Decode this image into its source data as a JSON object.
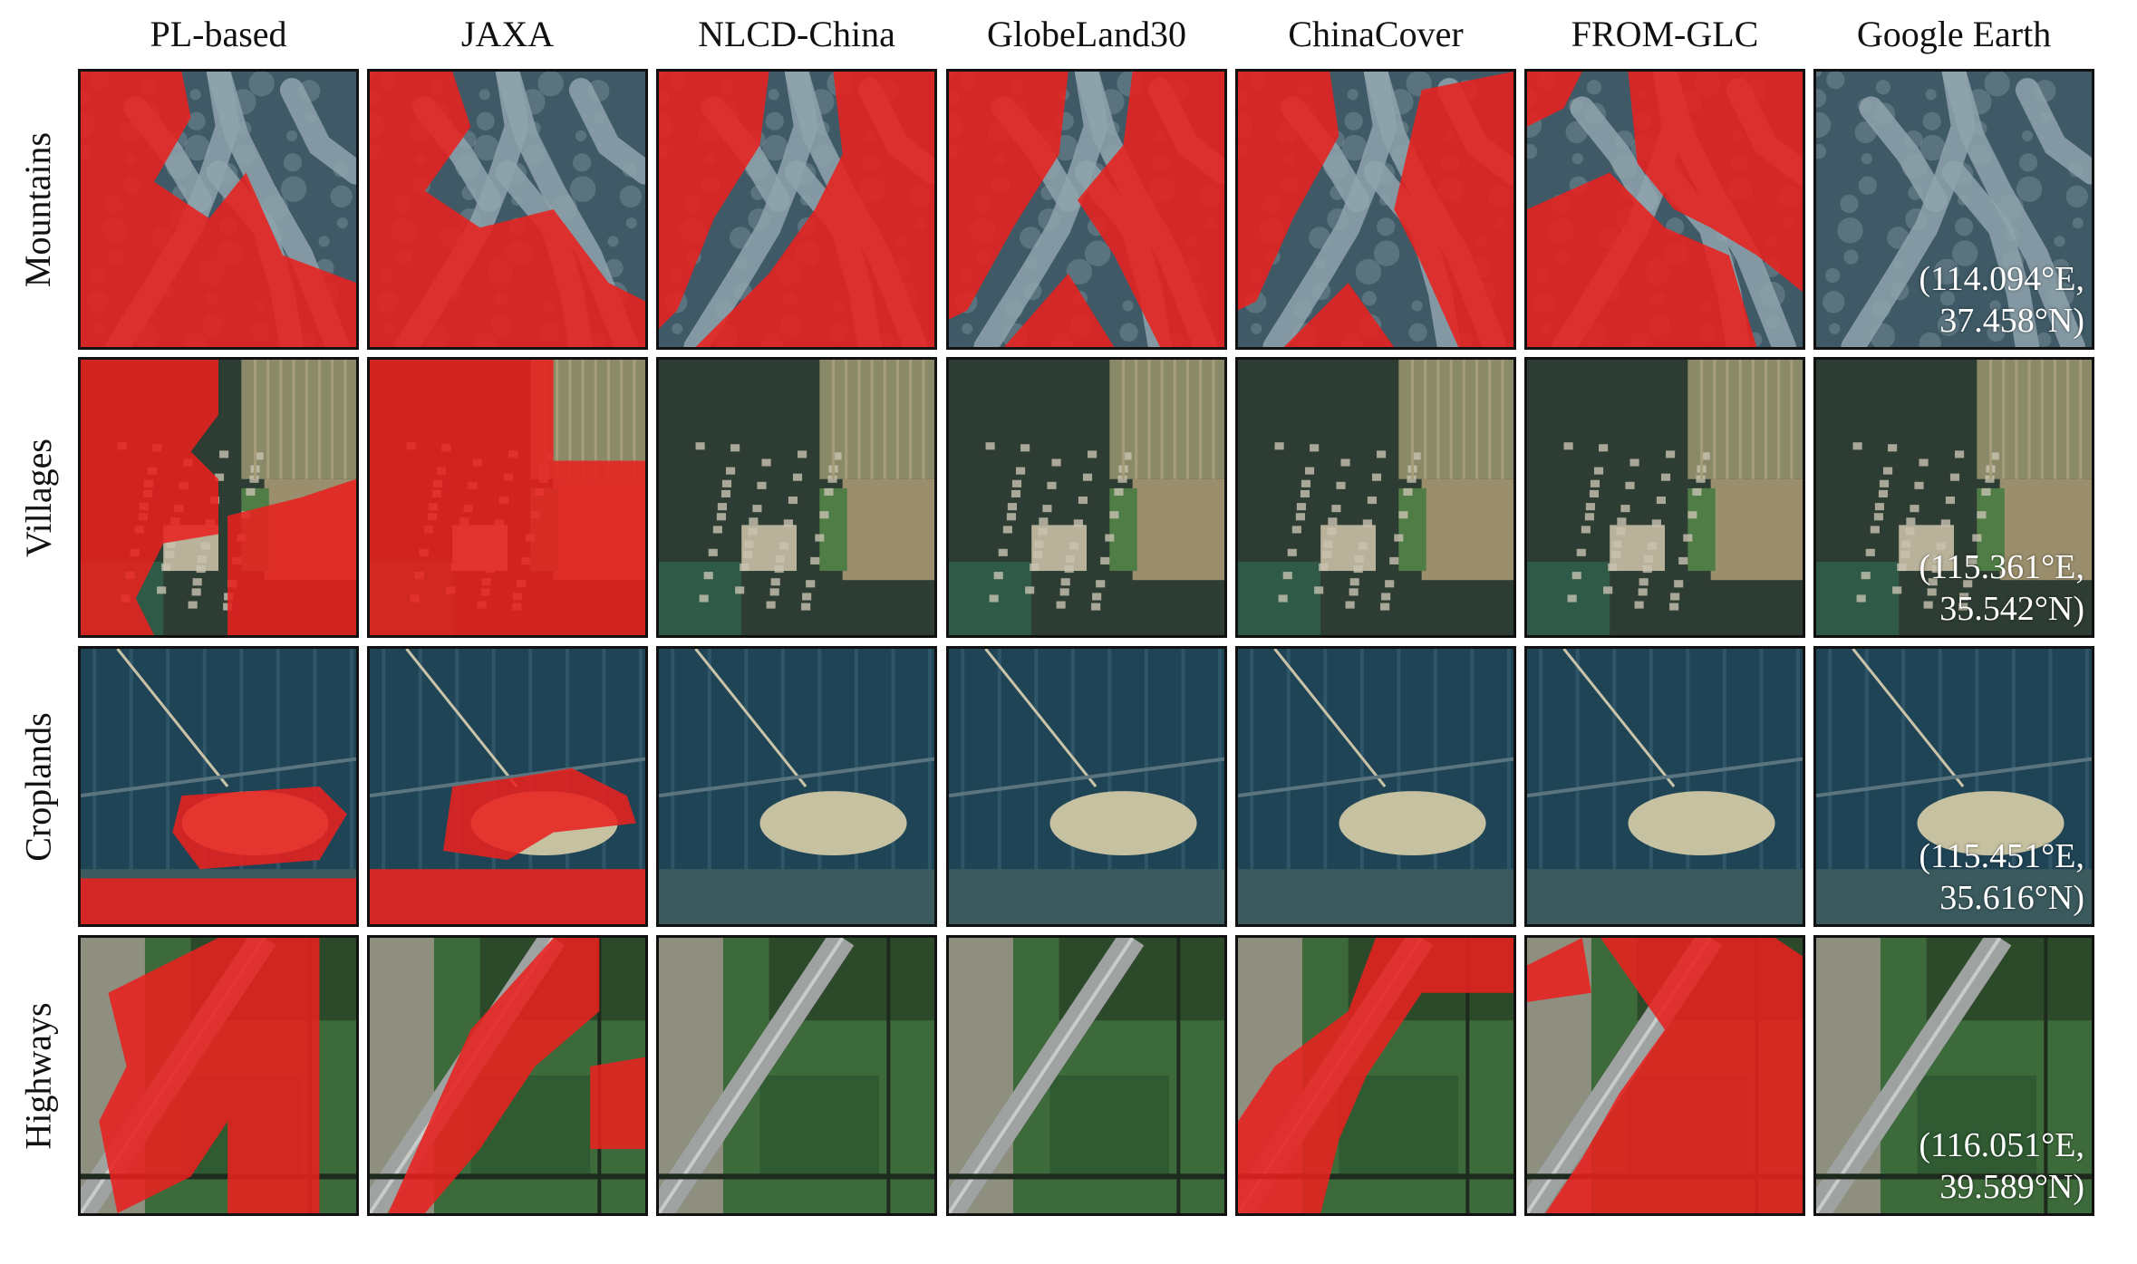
{
  "figure": {
    "columns": [
      "PL-based",
      "JAXA",
      "NLCD-China",
      "GlobeLand30",
      "ChinaCover",
      "FROM-GLC",
      "Google Earth"
    ],
    "rows": [
      {
        "label": "Mountains",
        "coordinate": {
          "lon": "(114.094°E,",
          "lat": "37.458°N)"
        }
      },
      {
        "label": "Villages",
        "coordinate": {
          "lon": "(115.361°E,",
          "lat": "35.542°N)"
        }
      },
      {
        "label": "Croplands",
        "coordinate": {
          "lon": "(115.451°E,",
          "lat": "35.616°N)"
        }
      },
      {
        "label": "Highways",
        "coordinate": {
          "lon": "(116.051°E,",
          "lat": "39.589°N)"
        }
      }
    ]
  },
  "colors": {
    "overlay_red": "#e8211f",
    "mountain_rock": "#8fa3ad",
    "mountain_dark": "#3f5a66",
    "village_field": "#8a8a68",
    "village_tree": "#2e3d33",
    "cropland_blue": "#1f4456",
    "cropland_sand": "#d8cfa8",
    "highway_green": "#3d6a3a",
    "highway_road": "#9ea2a0",
    "border": "#111111"
  }
}
